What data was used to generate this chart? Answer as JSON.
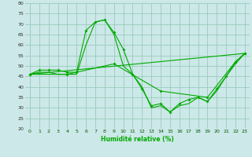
{
  "xlabel": "Humidité relative (%)",
  "background_color": "#cce8e8",
  "grid_color": "#99ccbb",
  "line_color": "#00aa00",
  "xlim": [
    -0.5,
    23.5
  ],
  "ylim": [
    20,
    80
  ],
  "yticks": [
    20,
    25,
    30,
    35,
    40,
    45,
    50,
    55,
    60,
    65,
    70,
    75,
    80
  ],
  "xticks": [
    0,
    1,
    2,
    3,
    4,
    5,
    6,
    7,
    8,
    9,
    10,
    11,
    12,
    13,
    14,
    15,
    16,
    17,
    18,
    19,
    20,
    21,
    22,
    23
  ],
  "series": [
    {
      "x": [
        0,
        1,
        2,
        3,
        4,
        5,
        6,
        7,
        8,
        9,
        10,
        11,
        12,
        13,
        14,
        15,
        16,
        17,
        18,
        19,
        20,
        21,
        22,
        23
      ],
      "y": [
        46,
        48,
        48,
        48,
        47,
        47,
        67,
        71,
        72,
        66,
        58,
        46,
        39,
        31,
        32,
        28,
        32,
        34,
        35,
        33,
        39,
        45,
        52,
        56
      ],
      "has_markers": true
    },
    {
      "x": [
        0,
        1,
        2,
        3,
        4,
        5,
        6,
        7,
        8,
        9,
        10,
        11,
        12,
        13,
        14,
        15,
        16,
        17,
        18,
        19,
        20,
        21,
        22,
        23
      ],
      "y": [
        46,
        47,
        47,
        46,
        46,
        46,
        60,
        71,
        72,
        65,
        50,
        46,
        40,
        30,
        31,
        28,
        31,
        32,
        35,
        33,
        38,
        45,
        51,
        56
      ],
      "has_markers": false
    },
    {
      "x": [
        0,
        23
      ],
      "y": [
        46,
        56
      ],
      "has_markers": false
    },
    {
      "x": [
        0,
        4,
        9,
        14,
        19,
        22,
        23
      ],
      "y": [
        46,
        46,
        51,
        38,
        35,
        52,
        56
      ],
      "has_markers": true
    }
  ]
}
